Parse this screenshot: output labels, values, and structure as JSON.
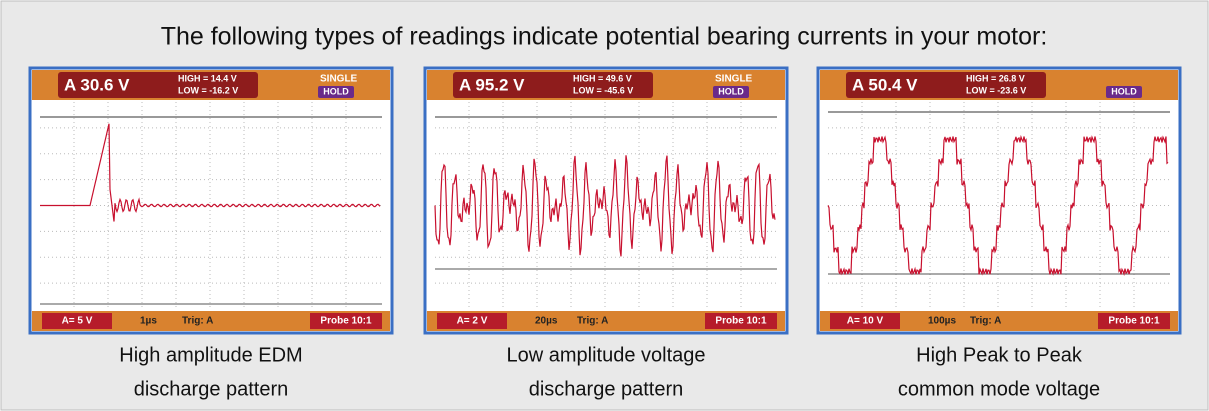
{
  "title": "The following types of readings indicate potential bearing currents in your motor:",
  "panels": [
    {
      "reading": "A 30.6 V",
      "high": "HIGH = 14.4 V",
      "low": "LOW = -16.2 V",
      "mode": "SINGLE",
      "hold": "HOLD",
      "range": "A= 5 V",
      "timebase": "1µs",
      "trig": "Trig: A",
      "probe": "Probe 10:1",
      "caption": [
        "High amplitude EDM",
        "discharge pattern"
      ]
    },
    {
      "reading": "A 95.2 V",
      "high": "HIGH = 49.6 V",
      "low": "LOW = -45.6 V",
      "mode": "SINGLE",
      "hold": "HOLD",
      "range": "A= 2 V",
      "timebase": "20µs",
      "trig": "Trig: A",
      "probe": "Probe 10:1",
      "caption": [
        "Low amplitude voltage",
        "discharge pattern"
      ]
    },
    {
      "reading": "A 50.4 V",
      "high": "HIGH = 26.8 V",
      "low": "LOW = -23.6 V",
      "hold": "HOLD",
      "range": "A= 10 V",
      "timebase": "100µs",
      "trig": "Trig: A",
      "probe": "Probe 10:1",
      "caption": [
        "High Peak to Peak",
        "common mode voltage"
      ]
    }
  ]
}
